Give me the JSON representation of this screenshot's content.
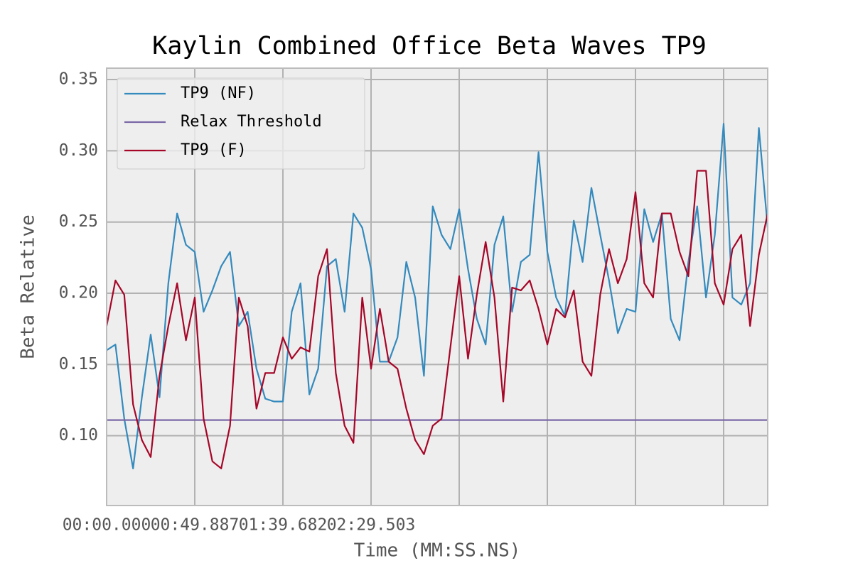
{
  "chart_data": {
    "type": "line",
    "title": "Kaylin Combined Office Beta Waves TP9",
    "x_label": "Time (MM:SS.NS)",
    "y_label": "Beta Relative",
    "x": [
      0,
      10,
      20,
      30,
      40,
      50,
      60,
      70,
      80,
      90,
      100,
      110,
      120,
      130,
      140,
      150,
      160,
      170,
      180,
      190,
      200,
      210,
      220,
      230,
      240,
      250,
      260,
      270,
      280,
      290,
      300,
      310,
      320,
      330,
      340,
      350,
      360,
      370,
      380,
      390,
      400,
      410,
      420,
      430,
      440,
      450,
      460,
      470,
      480,
      490,
      500,
      510,
      520,
      530,
      540,
      550,
      560,
      570,
      580,
      590,
      600,
      610,
      620,
      630,
      640,
      650,
      660,
      670,
      680,
      690,
      700,
      710,
      720,
      730,
      740,
      750
    ],
    "xlim": [
      0,
      750
    ],
    "xticks": [
      {
        "value": 0,
        "label": "00:00.000"
      },
      {
        "value": 100,
        "label": "00:49.887"
      },
      {
        "value": 200,
        "label": "01:39.682"
      },
      {
        "value": 300,
        "label": "02:29.503"
      },
      {
        "value": 400,
        "label": null
      },
      {
        "value": 500,
        "label": null
      },
      {
        "value": 600,
        "label": null
      },
      {
        "value": 700,
        "label": null
      }
    ],
    "ylim": [
      0.051,
      0.358
    ],
    "yticks": [
      {
        "value": 0.1,
        "label": "0.10"
      },
      {
        "value": 0.15,
        "label": "0.15"
      },
      {
        "value": 0.2,
        "label": "0.20"
      },
      {
        "value": 0.25,
        "label": "0.25"
      },
      {
        "value": 0.3,
        "label": "0.30"
      },
      {
        "value": 0.35,
        "label": "0.35"
      }
    ],
    "grid": true,
    "legend_position": "upper-left",
    "series": [
      {
        "name": "TP9 (NF)",
        "color": "#348abd",
        "values": [
          0.16,
          0.164,
          0.112,
          0.077,
          0.127,
          0.171,
          0.127,
          0.207,
          0.256,
          0.234,
          0.229,
          0.187,
          0.202,
          0.219,
          0.229,
          0.177,
          0.187,
          0.147,
          0.126,
          0.124,
          0.124,
          0.187,
          0.207,
          0.129,
          0.147,
          0.219,
          0.224,
          0.187,
          0.256,
          0.246,
          0.217,
          0.152,
          0.152,
          0.169,
          0.222,
          0.197,
          0.142,
          0.261,
          0.241,
          0.231,
          0.259,
          0.217,
          0.182,
          0.164,
          0.234,
          0.254,
          0.187,
          0.222,
          0.227,
          0.299,
          0.229,
          0.197,
          0.184,
          0.251,
          0.222,
          0.274,
          0.241,
          0.209,
          0.172,
          0.189,
          0.187,
          0.259,
          0.236,
          0.256,
          0.182,
          0.167,
          0.222,
          0.261,
          0.197,
          0.241,
          0.319,
          0.197,
          0.192,
          0.207,
          0.316,
          0.246
        ]
      },
      {
        "name": "Relax Threshold",
        "color": "#7a68a6",
        "hline": 0.111
      },
      {
        "name": "TP9 (F)",
        "color": "#a60628",
        "values": [
          0.177,
          0.209,
          0.199,
          0.122,
          0.097,
          0.085,
          0.142,
          0.177,
          0.207,
          0.167,
          0.197,
          0.112,
          0.082,
          0.077,
          0.107,
          0.197,
          0.177,
          0.119,
          0.144,
          0.144,
          0.169,
          0.154,
          0.162,
          0.159,
          0.212,
          0.231,
          0.144,
          0.107,
          0.095,
          0.197,
          0.147,
          0.189,
          0.152,
          0.147,
          0.119,
          0.097,
          0.087,
          0.107,
          0.112,
          0.162,
          0.212,
          0.154,
          0.199,
          0.236,
          0.197,
          0.124,
          0.204,
          0.202,
          0.209,
          0.189,
          0.164,
          0.189,
          0.183,
          0.202,
          0.152,
          0.142,
          0.199,
          0.231,
          0.207,
          0.224,
          0.271,
          0.207,
          0.197,
          0.256,
          0.256,
          0.229,
          0.212,
          0.286,
          0.286,
          0.207,
          0.192,
          0.231,
          0.241,
          0.177,
          0.227,
          0.256
        ]
      }
    ]
  }
}
